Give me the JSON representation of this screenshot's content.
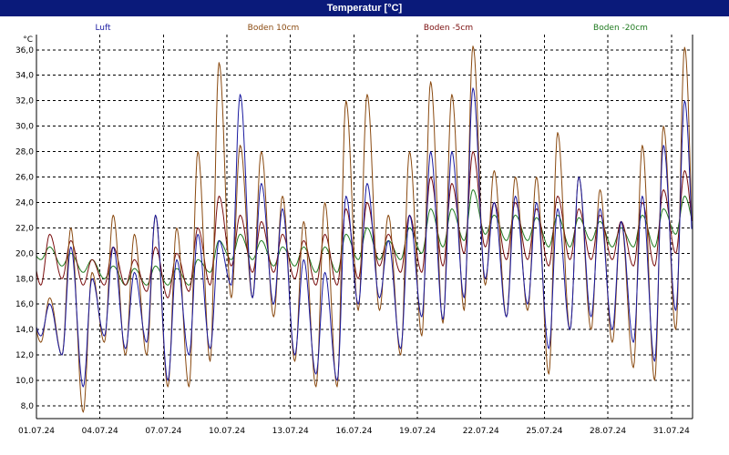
{
  "window": {
    "title": "Temperatur [°C]"
  },
  "chart_data": {
    "type": "line",
    "title": "Temperatur [°C]",
    "ylabel": "°C",
    "ylim": [
      7.0,
      37.2
    ],
    "yticks": [
      8.0,
      10.0,
      12.0,
      14.0,
      16.0,
      18.0,
      20.0,
      22.0,
      24.0,
      26.0,
      28.0,
      30.0,
      32.0,
      34.0,
      36.0
    ],
    "ytick_labels": [
      "8,0",
      "10,0",
      "12,0",
      "14,0",
      "16,0",
      "18,0",
      "20,0",
      "22,0",
      "24,0",
      "26,0",
      "28,0",
      "30,0",
      "32,0",
      "34,0",
      "36,0"
    ],
    "xlim": [
      "2024-07-01",
      "2024-08-01"
    ],
    "xticks": [
      "01.07.24",
      "04.07.24",
      "07.07.24",
      "10.07.24",
      "13.07.24",
      "16.07.24",
      "19.07.24",
      "22.07.24",
      "25.07.24",
      "28.07.24",
      "31.07.24"
    ],
    "grid": true,
    "legend_position": "top",
    "days": [
      "07-01",
      "07-02",
      "07-03",
      "07-04",
      "07-05",
      "07-06",
      "07-07",
      "07-08",
      "07-09",
      "07-10",
      "07-11",
      "07-12",
      "07-13",
      "07-14",
      "07-15",
      "07-16",
      "07-17",
      "07-18",
      "07-19",
      "07-20",
      "07-21",
      "07-22",
      "07-23",
      "07-24",
      "07-25",
      "07-26",
      "07-27",
      "07-28",
      "07-29",
      "07-30",
      "07-31"
    ],
    "series": [
      {
        "name": "Luft",
        "color": "#1a1aa0",
        "daily_min": [
          13.5,
          12.0,
          9.5,
          13.5,
          12.5,
          13.0,
          10.0,
          12.0,
          12.5,
          17.5,
          16.5,
          16.0,
          12.0,
          10.5,
          10.0,
          16.0,
          16.5,
          12.5,
          15.0,
          14.8,
          16.5,
          18.0,
          15.0,
          16.0,
          12.5,
          14.0,
          15.0,
          14.0,
          13.0,
          11.5,
          15.5
        ],
        "daily_max": [
          16.0,
          20.5,
          18.0,
          20.5,
          18.5,
          23.0,
          19.5,
          21.5,
          21.0,
          32.5,
          25.5,
          23.5,
          19.5,
          18.5,
          24.5,
          25.5,
          21.0,
          23.0,
          28.0,
          28.0,
          33.0,
          24.0,
          24.5,
          24.0,
          23.5,
          26.0,
          23.5,
          22.5,
          24.5,
          28.5,
          32.0
        ]
      },
      {
        "name": "Boden 10cm",
        "color": "#8a4a10",
        "daily_min": [
          13.0,
          12.0,
          7.5,
          13.0,
          12.0,
          12.0,
          9.5,
          9.5,
          11.5,
          16.5,
          16.5,
          15.0,
          11.5,
          9.5,
          9.5,
          15.5,
          15.5,
          12.0,
          13.5,
          14.5,
          15.5,
          17.5,
          15.0,
          15.5,
          10.5,
          14.0,
          14.0,
          13.0,
          11.0,
          10.0,
          14.0
        ],
        "daily_max": [
          16.5,
          22.0,
          18.5,
          23.0,
          21.5,
          23.0,
          22.0,
          28.0,
          35.0,
          28.5,
          28.0,
          24.5,
          22.5,
          24.0,
          32.0,
          32.5,
          23.0,
          28.0,
          33.5,
          32.5,
          36.3,
          26.5,
          26.0,
          26.0,
          29.5,
          26.0,
          25.0,
          22.5,
          28.5,
          30.0,
          36.2
        ]
      },
      {
        "name": "Boden -5cm",
        "color": "#7a0e0e",
        "daily_min": [
          17.5,
          18.0,
          17.5,
          17.5,
          17.5,
          17.0,
          16.5,
          17.0,
          17.5,
          19.0,
          18.5,
          18.5,
          18.0,
          17.5,
          17.5,
          18.0,
          19.0,
          18.5,
          18.5,
          19.0,
          20.0,
          20.5,
          19.5,
          19.5,
          19.0,
          19.5,
          19.5,
          19.5,
          19.0,
          19.0,
          20.0
        ],
        "daily_max": [
          21.5,
          21.0,
          19.5,
          20.5,
          19.5,
          20.5,
          20.0,
          22.0,
          24.5,
          23.0,
          22.5,
          21.5,
          21.0,
          21.5,
          23.5,
          24.0,
          21.5,
          23.0,
          26.0,
          25.5,
          28.0,
          24.0,
          24.0,
          23.5,
          24.5,
          23.5,
          23.0,
          22.5,
          24.0,
          25.0,
          26.5
        ]
      },
      {
        "name": "Boden -20cm",
        "color": "#1f7a1f",
        "daily_min": [
          19.5,
          19.0,
          18.5,
          18.0,
          17.5,
          17.5,
          17.5,
          17.5,
          18.5,
          19.5,
          19.5,
          19.0,
          19.0,
          18.5,
          18.5,
          19.5,
          19.5,
          19.5,
          20.0,
          20.5,
          21.0,
          21.5,
          21.0,
          21.0,
          20.5,
          20.5,
          21.0,
          20.5,
          20.5,
          20.5,
          21.5
        ],
        "daily_max": [
          20.5,
          20.0,
          19.5,
          19.0,
          18.8,
          19.0,
          18.8,
          19.5,
          21.0,
          21.5,
          21.0,
          20.5,
          20.5,
          20.5,
          21.5,
          22.0,
          21.0,
          22.0,
          23.5,
          23.5,
          25.0,
          23.0,
          23.0,
          22.8,
          23.0,
          22.8,
          22.5,
          22.0,
          23.0,
          23.5,
          24.5
        ]
      }
    ]
  }
}
